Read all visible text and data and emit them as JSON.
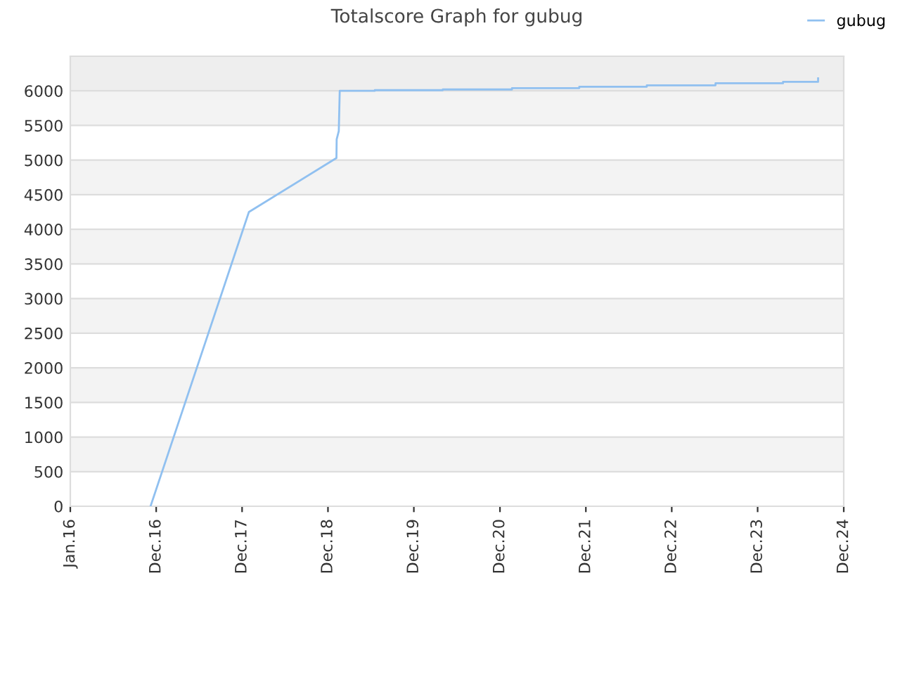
{
  "chart_data": {
    "type": "line",
    "title": "Totalscore Graph for gubug",
    "x": [
      "2016-12-07",
      "2018-01-29",
      "2019-02-05",
      "2019-02-06",
      "2019-02-15",
      "2019-02-19",
      "2019-07-18",
      "2019-07-18",
      "2020-05-02",
      "2020-05-02",
      "2021-02-20",
      "2021-02-20",
      "2021-12-03",
      "2021-12-03",
      "2022-09-16",
      "2022-09-16",
      "2023-07-05",
      "2023-07-05",
      "2024-04-17",
      "2024-04-17",
      "2024-09-13",
      "2024-09-13"
    ],
    "series": [
      {
        "name": "gubug",
        "color": "#90c0f0",
        "values": [
          0,
          4250,
          5030,
          5300,
          5420,
          6000,
          6000,
          6010,
          6010,
          6020,
          6020,
          6040,
          6040,
          6060,
          6060,
          6080,
          6080,
          6110,
          6110,
          6130,
          6130,
          6180
        ]
      }
    ],
    "bands": [
      {
        "axis": "y",
        "from": 500,
        "to": 1000,
        "color": "#f3f3f3"
      },
      {
        "axis": "y",
        "from": 1500,
        "to": 2000,
        "color": "#f3f3f3"
      },
      {
        "axis": "y",
        "from": 2500,
        "to": 3000,
        "color": "#f3f3f3"
      },
      {
        "axis": "y",
        "from": 3500,
        "to": 4000,
        "color": "#f3f3f3"
      },
      {
        "axis": "y",
        "from": 4500,
        "to": 5000,
        "color": "#f3f3f3"
      },
      {
        "axis": "y",
        "from": 5500,
        "to": 6000,
        "color": "#f3f3f3"
      },
      {
        "axis": "y",
        "from": 6000,
        "to": 6500,
        "color": "#eeeeee"
      }
    ],
    "xlim": [
      "2016-01-01",
      "2024-12-31"
    ],
    "xticks": [
      {
        "value": "2016-01-01",
        "label": "Jan.16"
      },
      {
        "value": "2016-12-31",
        "label": "Dec.16"
      },
      {
        "value": "2017-12-31",
        "label": "Dec.17"
      },
      {
        "value": "2018-12-31",
        "label": "Dec.18"
      },
      {
        "value": "2019-12-31",
        "label": "Dec.19"
      },
      {
        "value": "2020-12-31",
        "label": "Dec.20"
      },
      {
        "value": "2021-12-31",
        "label": "Dec.21"
      },
      {
        "value": "2022-12-31",
        "label": "Dec.22"
      },
      {
        "value": "2023-12-31",
        "label": "Dec.23"
      },
      {
        "value": "2024-12-31",
        "label": "Dec.24"
      }
    ],
    "ylim": [
      0,
      6500
    ],
    "yticks": [
      0,
      500,
      1000,
      1500,
      2000,
      2500,
      3000,
      3500,
      4000,
      4500,
      5000,
      5500,
      6000
    ],
    "grid": "y",
    "legend": "top right",
    "marker": "none",
    "line_style": "solid"
  }
}
